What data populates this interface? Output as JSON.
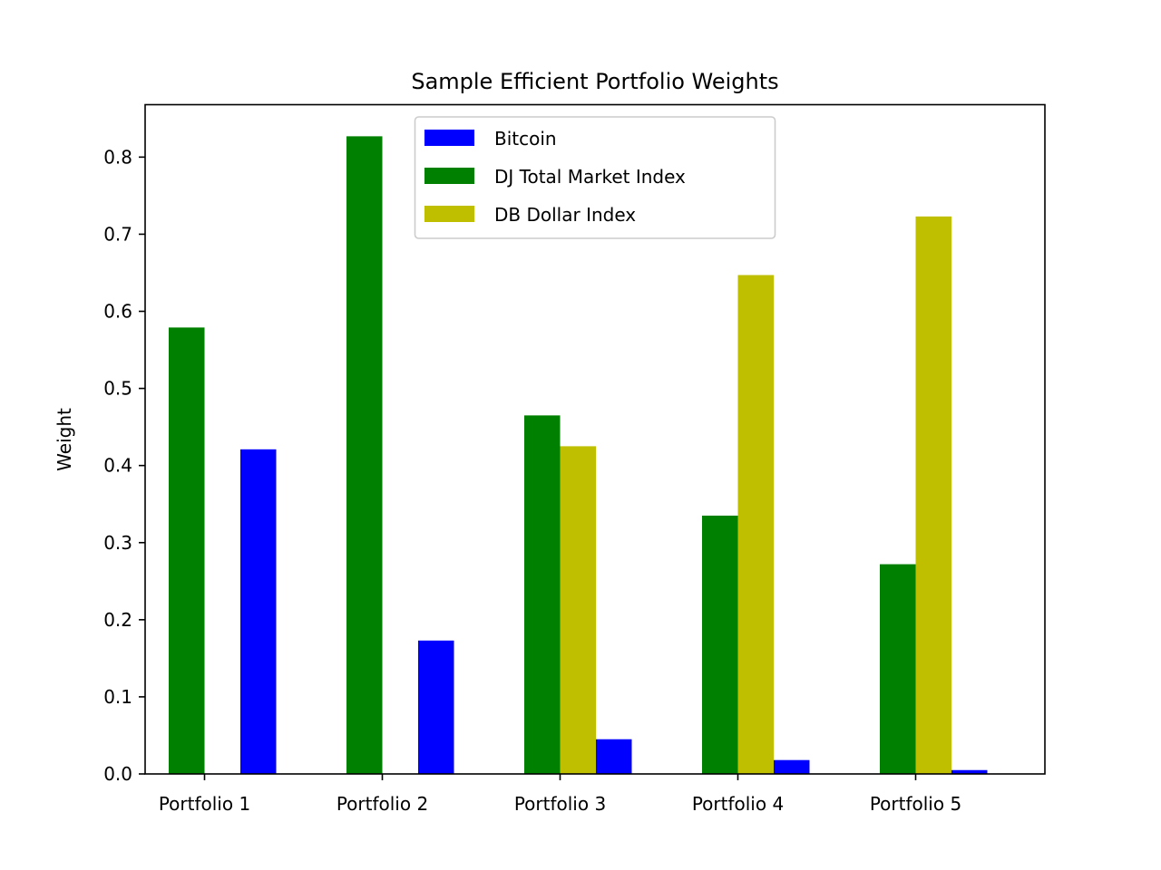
{
  "chart_data": {
    "type": "bar",
    "title": "Sample Efficient Portfolio Weights",
    "xlabel": "",
    "ylabel": "Weight",
    "categories": [
      "Portfolio 1",
      "Portfolio 2",
      "Portfolio 3",
      "Portfolio 4",
      "Portfolio 5"
    ],
    "series": [
      {
        "name": "Bitcoin",
        "color": "#0000ff",
        "values": [
          0.421,
          0.173,
          0.045,
          0.018,
          0.005
        ]
      },
      {
        "name": "DJ Total Market Index",
        "color": "#008000",
        "values": [
          0.579,
          0.827,
          0.465,
          0.335,
          0.272
        ]
      },
      {
        "name": "DB Dollar Index",
        "color": "#bfbf00",
        "values": [
          0.0,
          0.0,
          0.425,
          0.647,
          0.723
        ]
      }
    ],
    "ylim": [
      0,
      0.868
    ],
    "yticks": [
      "0.0",
      "0.1",
      "0.2",
      "0.3",
      "0.4",
      "0.5",
      "0.6",
      "0.7",
      "0.8"
    ],
    "grid": false,
    "legend_position": "top-center"
  }
}
